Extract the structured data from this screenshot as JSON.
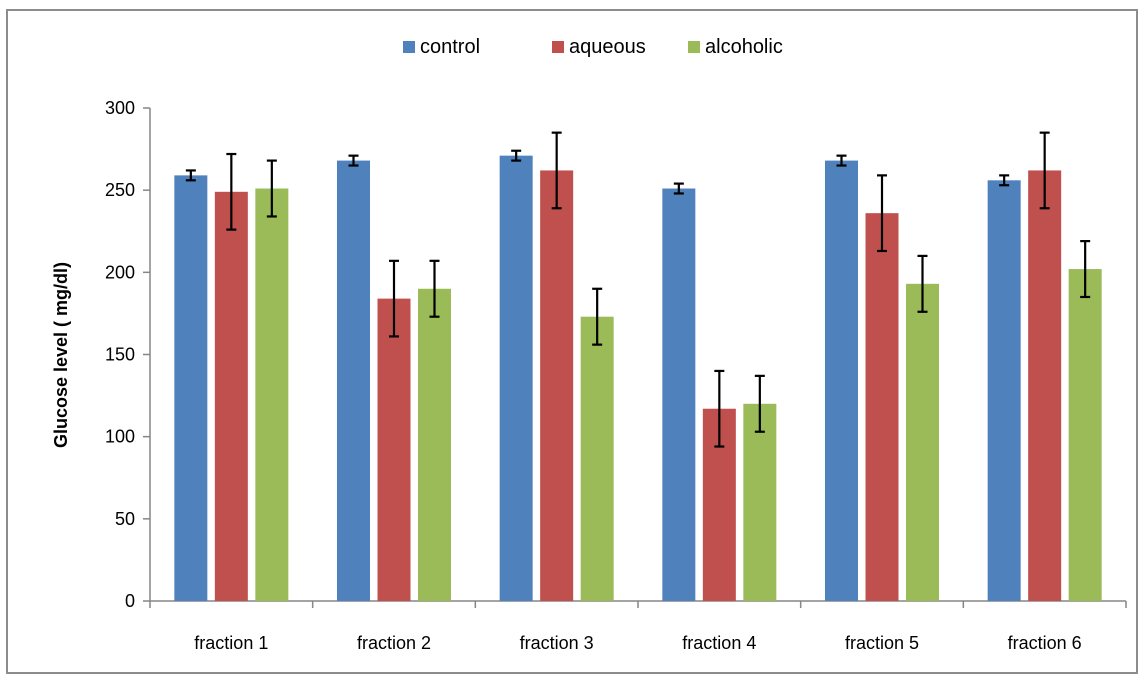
{
  "chart_data": {
    "type": "bar",
    "categories": [
      "fraction 1",
      "fraction 2",
      "fraction 3",
      "fraction 4",
      "fraction 5",
      "fraction 6"
    ],
    "series": [
      {
        "name": "control",
        "color": "#4f81bd",
        "values": [
          259,
          268,
          271,
          251,
          268,
          256
        ],
        "errors": [
          3,
          3,
          3,
          3,
          3,
          3
        ]
      },
      {
        "name": "aqueous",
        "color": "#c0504d",
        "values": [
          249,
          184,
          262,
          117,
          236,
          262
        ],
        "errors": [
          23,
          23,
          23,
          23,
          23,
          23
        ]
      },
      {
        "name": "alcoholic",
        "color": "#9bbb59",
        "values": [
          251,
          190,
          173,
          120,
          193,
          202
        ],
        "errors": [
          17,
          17,
          17,
          17,
          17,
          17
        ]
      }
    ],
    "title": "",
    "xlabel": "",
    "ylabel": "Glucose level ( mg/dl)",
    "ylim": [
      0,
      300
    ],
    "yticks": [
      "0",
      "50",
      "100",
      "150",
      "200",
      "250",
      "300"
    ],
    "grid": false,
    "legend_position": "top"
  }
}
